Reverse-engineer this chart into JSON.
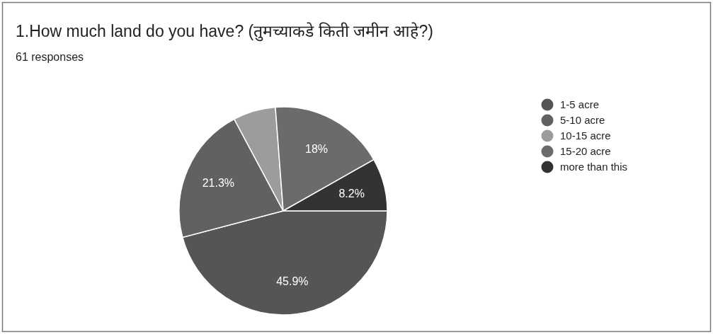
{
  "chart_data": {
    "type": "pie",
    "title": "1.How much land do you have? (तुमच्याकडे किती जमीन आहे?)",
    "subtitle": "61 responses",
    "categories": [
      "1-5 acre",
      "5-10 acre",
      "10-15 acre",
      "15-20 acre",
      "more than this"
    ],
    "values": [
      45.9,
      21.3,
      6.6,
      18,
      8.2
    ],
    "colors": [
      "#555555",
      "#616161",
      "#9c9c9c",
      "#6b6b6b",
      "#333333"
    ],
    "value_labels": [
      "45.9%",
      "21.3%",
      null,
      "18%",
      "8.2%"
    ],
    "legend": "right"
  }
}
